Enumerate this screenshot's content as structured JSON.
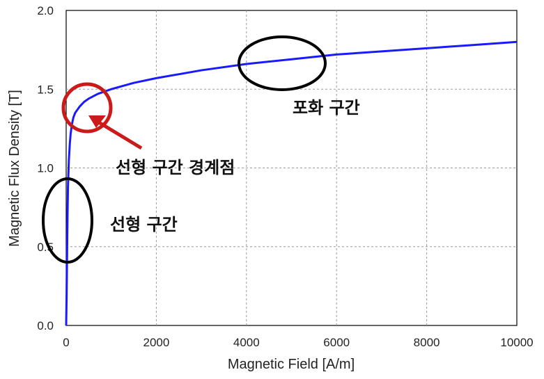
{
  "chart_data": {
    "type": "line",
    "xlabel": "Magnetic Field [A/m]",
    "ylabel": "Magnetic Flux Density [T]",
    "xlim": [
      0,
      10000
    ],
    "ylim": [
      0,
      2.0
    ],
    "x_ticks": [
      "0",
      "2000",
      "4000",
      "6000",
      "8000",
      "10000"
    ],
    "y_ticks": [
      "0.0",
      "0.5",
      "1.0",
      "1.5",
      "2.0"
    ],
    "grid": "dashed",
    "series": [
      {
        "color": "#1a1aff",
        "x": [
          0,
          10,
          20,
          30,
          40,
          60,
          80,
          100,
          130,
          160,
          200,
          250,
          300,
          400,
          500,
          700,
          1000,
          1500,
          2000,
          3000,
          4000,
          5000,
          6000,
          7000,
          8000,
          9000,
          10000
        ],
        "y": [
          0,
          0.2,
          0.45,
          0.7,
          0.88,
          1.05,
          1.15,
          1.22,
          1.28,
          1.32,
          1.35,
          1.37,
          1.39,
          1.42,
          1.44,
          1.47,
          1.5,
          1.54,
          1.57,
          1.62,
          1.66,
          1.69,
          1.72,
          1.74,
          1.76,
          1.78,
          1.8
        ]
      }
    ]
  },
  "annotations": {
    "saturation": "포화 구간",
    "knee": "선형 구간 경계점",
    "linear": "선형 구간"
  },
  "colors": {
    "curve": "#1a1aff",
    "knee_marker": "#cc1a1a",
    "ellipse": "#000000"
  }
}
